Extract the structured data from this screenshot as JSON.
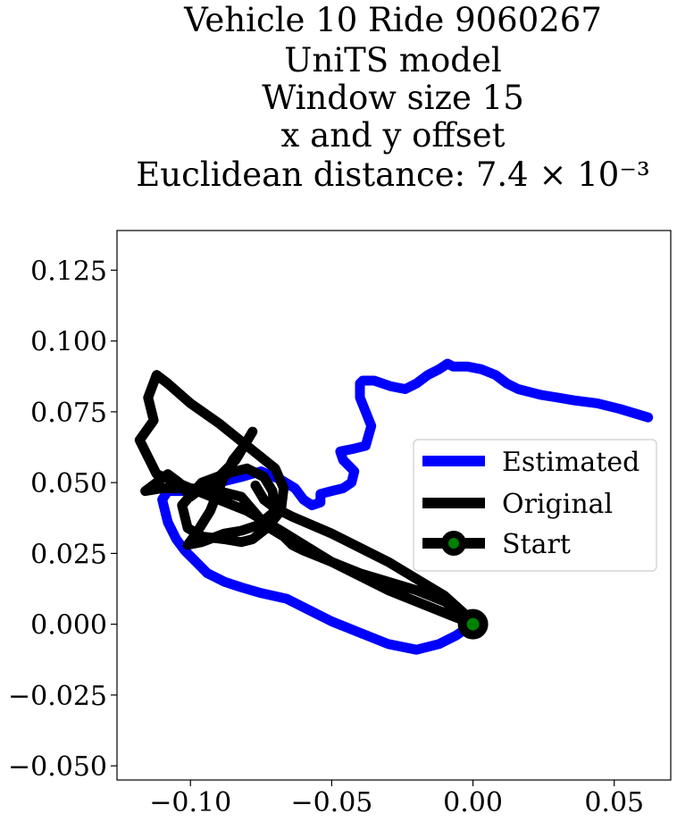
{
  "chart_data": {
    "type": "line",
    "title_lines": [
      "Vehicle 10 Ride 9060267",
      "UniTS model",
      "Window size 15",
      "x and y offset",
      "Euclidean distance: 7.4 × 10⁻³"
    ],
    "xlabel": "",
    "ylabel": "",
    "xlim": [
      -0.126,
      0.07
    ],
    "ylim": [
      -0.055,
      0.139
    ],
    "x_ticks": [
      -0.1,
      -0.05,
      0.0,
      0.05
    ],
    "x_tick_labels": [
      "−0.10",
      "−0.05",
      "0.00",
      "0.05"
    ],
    "y_ticks": [
      -0.05,
      -0.025,
      0.0,
      0.025,
      0.05,
      0.075,
      0.1,
      0.125
    ],
    "y_tick_labels": [
      "−0.050",
      "−0.025",
      "0.000",
      "0.025",
      "0.050",
      "0.075",
      "0.100",
      "0.125"
    ],
    "grid": false,
    "legend": "center-right",
    "series": [
      {
        "name": "Estimated",
        "color": "#0000ff",
        "x": [
          0.0,
          -0.006,
          -0.012,
          -0.02,
          -0.03,
          -0.04,
          -0.05,
          -0.058,
          -0.066,
          -0.075,
          -0.082,
          -0.088,
          -0.094,
          -0.098,
          -0.102,
          -0.105,
          -0.108,
          -0.11,
          -0.108,
          -0.1,
          -0.09,
          -0.082,
          -0.075,
          -0.068,
          -0.063,
          -0.06,
          -0.057,
          -0.054,
          -0.054,
          -0.05,
          -0.046,
          -0.043,
          -0.042,
          -0.044,
          -0.046,
          -0.047,
          -0.042,
          -0.038,
          -0.036,
          -0.038,
          -0.04,
          -0.04,
          -0.039,
          -0.035,
          -0.032,
          -0.029,
          -0.024,
          -0.02,
          -0.016,
          -0.012,
          -0.009,
          -0.007,
          -0.002,
          0.003,
          0.008,
          0.012,
          0.016,
          0.02,
          0.024,
          0.03,
          0.036,
          0.044,
          0.052,
          0.062
        ],
        "y": [
          0.0,
          -0.004,
          -0.007,
          -0.009,
          -0.007,
          -0.003,
          0.001,
          0.005,
          0.009,
          0.011,
          0.013,
          0.015,
          0.018,
          0.022,
          0.026,
          0.03,
          0.036,
          0.044,
          0.047,
          0.047,
          0.05,
          0.052,
          0.054,
          0.051,
          0.048,
          0.044,
          0.042,
          0.043,
          0.046,
          0.047,
          0.048,
          0.05,
          0.054,
          0.056,
          0.058,
          0.061,
          0.062,
          0.063,
          0.07,
          0.075,
          0.08,
          0.085,
          0.086,
          0.086,
          0.085,
          0.084,
          0.083,
          0.085,
          0.088,
          0.09,
          0.092,
          0.091,
          0.091,
          0.09,
          0.088,
          0.085,
          0.083,
          0.082,
          0.081,
          0.08,
          0.079,
          0.078,
          0.076,
          0.073
        ]
      },
      {
        "name": "Original",
        "color": "#000000",
        "x": [
          0.0,
          -0.01,
          -0.03,
          -0.05,
          -0.068,
          -0.08,
          -0.1,
          -0.112,
          -0.118,
          -0.113,
          -0.115,
          -0.112,
          -0.108,
          -0.1,
          -0.09,
          -0.08,
          -0.07,
          -0.067,
          -0.068,
          -0.073,
          -0.078,
          -0.082,
          -0.088,
          -0.096,
          -0.101,
          -0.103,
          -0.096,
          -0.088,
          -0.08,
          -0.074,
          -0.071,
          -0.07,
          -0.076,
          -0.082,
          -0.088,
          -0.096,
          -0.101,
          -0.098,
          -0.093,
          -0.089,
          -0.085,
          -0.081,
          -0.078,
          -0.084,
          -0.09,
          -0.096,
          -0.1,
          -0.104,
          -0.108,
          -0.112,
          -0.116,
          -0.11,
          -0.1,
          -0.09,
          -0.082,
          -0.076,
          -0.072,
          -0.067,
          -0.064,
          -0.06,
          -0.05,
          -0.04,
          -0.03,
          -0.02,
          -0.01,
          0.0,
          -0.01,
          -0.03,
          -0.05,
          -0.064,
          -0.07,
          -0.074,
          -0.077
        ],
        "y": [
          0.0,
          0.004,
          0.012,
          0.022,
          0.033,
          0.04,
          0.048,
          0.053,
          0.065,
          0.072,
          0.08,
          0.088,
          0.085,
          0.078,
          0.071,
          0.063,
          0.055,
          0.048,
          0.04,
          0.034,
          0.03,
          0.029,
          0.03,
          0.031,
          0.034,
          0.042,
          0.05,
          0.053,
          0.055,
          0.052,
          0.047,
          0.04,
          0.035,
          0.033,
          0.032,
          0.029,
          0.028,
          0.032,
          0.04,
          0.05,
          0.058,
          0.063,
          0.068,
          0.058,
          0.052,
          0.048,
          0.045,
          0.05,
          0.053,
          0.05,
          0.047,
          0.048,
          0.048,
          0.047,
          0.045,
          0.038,
          0.034,
          0.031,
          0.028,
          0.026,
          0.022,
          0.018,
          0.015,
          0.012,
          0.008,
          0.001,
          0.01,
          0.022,
          0.032,
          0.038,
          0.041,
          0.044,
          0.049
        ]
      },
      {
        "name": "Start",
        "color": "#000000",
        "marker_color": "#008000",
        "x": [
          0.0
        ],
        "y": [
          0.0
        ]
      }
    ]
  }
}
